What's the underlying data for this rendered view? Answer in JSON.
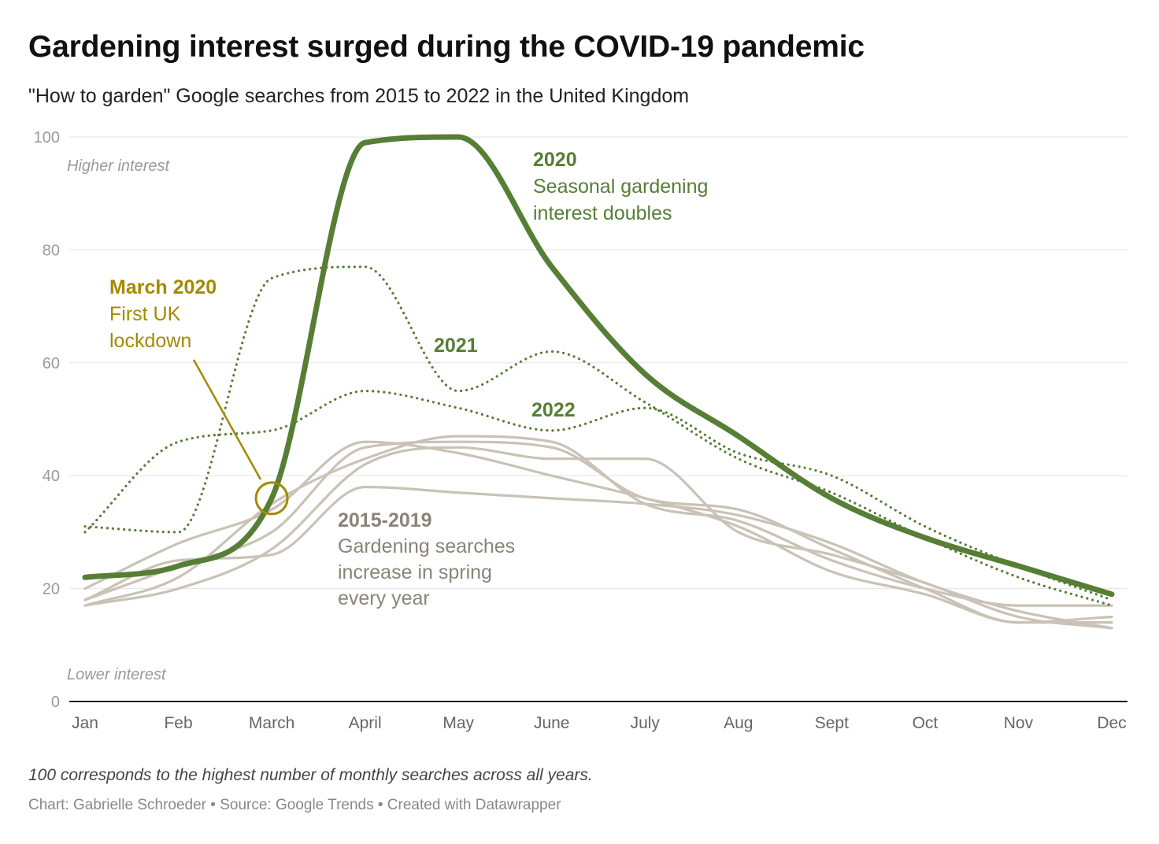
{
  "title": "Gardening interest surged during the COVID-19 pandemic",
  "subtitle": "\"How to garden\" Google searches from 2015 to 2022 in the United Kingdom",
  "notes": "100 corresponds to the highest number of monthly searches across all years.",
  "credit": "Chart: Gabrielle Schroeder • Source: Google Trends • Created with Datawrapper",
  "colors": {
    "highlight": "#567e35",
    "baseline": "#c9c2b6",
    "lockdown": "#a38a00",
    "gray_text": "#8b8378",
    "grid": "#e3e3e3",
    "axis": "#222222"
  },
  "chart_data": {
    "type": "line",
    "x_label": "",
    "y_label": "",
    "categories": [
      "Jan",
      "Feb",
      "March",
      "April",
      "May",
      "June",
      "July",
      "Aug",
      "Sept",
      "Oct",
      "Nov",
      "Dec"
    ],
    "ylim": [
      0,
      100
    ],
    "y_ticks": [
      "0",
      "20",
      "40",
      "60",
      "80",
      "100"
    ],
    "axis_notes": {
      "top": "Higher interest",
      "bottom": "Lower interest"
    },
    "series": [
      {
        "name": "2015-2019",
        "style": "gray",
        "values": [
          18,
          24,
          30,
          45,
          46,
          45,
          36,
          34,
          27,
          20,
          14,
          15
        ]
      },
      {
        "name": "2015-2019",
        "style": "gray",
        "values": [
          17,
          22,
          35,
          43,
          47,
          46,
          35,
          32,
          25,
          20,
          17,
          17
        ]
      },
      {
        "name": "2015-2019",
        "style": "gray",
        "values": [
          20,
          28,
          34,
          46,
          44,
          40,
          36,
          31,
          23,
          19,
          14,
          14
        ]
      },
      {
        "name": "2015-2019",
        "style": "gray",
        "values": [
          17,
          20,
          27,
          42,
          45,
          43,
          43,
          30,
          26,
          21,
          15,
          13
        ]
      },
      {
        "name": "2015-2019",
        "style": "gray",
        "values": [
          18,
          25,
          26,
          38,
          37,
          36,
          35,
          33,
          28,
          21,
          16,
          13
        ]
      },
      {
        "name": "2021",
        "style": "dotted",
        "values": [
          31,
          30,
          75,
          77,
          55,
          62,
          53,
          43,
          37,
          29,
          22,
          17
        ]
      },
      {
        "name": "2022",
        "style": "dotted",
        "values": [
          30,
          46,
          48,
          55,
          52,
          48,
          52,
          44,
          40,
          31,
          24,
          18
        ]
      },
      {
        "name": "2020",
        "style": "bold",
        "values": [
          22,
          24,
          36,
          99,
          100,
          77,
          58,
          47,
          36,
          29,
          24,
          19
        ]
      }
    ],
    "annotations": {
      "a2020": {
        "head": "2020",
        "lines": [
          "Seasonal gardening",
          "interest doubles"
        ]
      },
      "a2021": {
        "head": "2021"
      },
      "a2022": {
        "head": "2022"
      },
      "lockdown": {
        "head": "March 2020",
        "lines": [
          "First UK",
          "lockdown"
        ],
        "x_category": "March",
        "y_value": 36
      },
      "baseline": {
        "head": "2015-2019",
        "lines": [
          "Gardening searches",
          "increase in spring",
          "every year"
        ]
      }
    }
  }
}
